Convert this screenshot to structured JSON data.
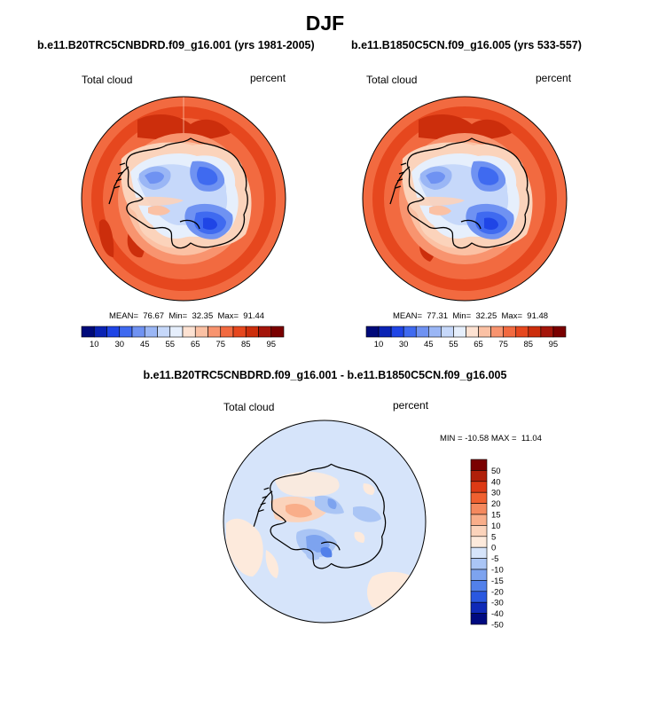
{
  "figure": {
    "season_title": "DJF",
    "diff_title": "b.e11.B20TRC5CNBDRD.f09_g16.001 - b.e11.B1850C5CN.f09_g16.005"
  },
  "panels": [
    {
      "title": "b.e11.B20TRC5CNBDRD.f09_g16.001 (yrs 1981-2005)",
      "variable": "Total cloud",
      "units": "percent",
      "stats": "MEAN=  76.67  Min=  32.35  Max=  91.44"
    },
    {
      "title": "b.e11.B1850C5CN.f09_g16.005 (yrs 533-557)",
      "variable": "Total cloud",
      "units": "percent",
      "stats": "MEAN=  77.31  Min=  32.25  Max=  91.48"
    }
  ],
  "diff_panel": {
    "variable": "Total cloud",
    "units": "percent",
    "stats": "MIN = -10.58 MAX =  11.04"
  },
  "colorbar_main": {
    "labels": [
      "10",
      "30",
      "45",
      "55",
      "65",
      "75",
      "85",
      "95"
    ],
    "colors": [
      "#000a7a",
      "#0a23b4",
      "#1f45e6",
      "#3f6af0",
      "#6f92f2",
      "#9ab6f5",
      "#c6d8fa",
      "#e6effc",
      "#fde2d2",
      "#fbc1a4",
      "#f8946f",
      "#f26a40",
      "#e6471e",
      "#cc2e0c",
      "#a4150a",
      "#7a0000"
    ]
  },
  "colorbar_diff": {
    "labels": [
      "50",
      "40",
      "30",
      "20",
      "15",
      "10",
      "5",
      "0",
      "-5",
      "-10",
      "-15",
      "-20",
      "-30",
      "-40",
      "-50"
    ],
    "colors": [
      "#7a0000",
      "#b0200a",
      "#dd3a15",
      "#f06030",
      "#f5895e",
      "#f9ae8a",
      "#fbd3bb",
      "#fdeadc",
      "#d6e4fa",
      "#aac5f5",
      "#7da3ef",
      "#5280ea",
      "#2a58e0",
      "#0f2ab8",
      "#000a80"
    ]
  }
}
